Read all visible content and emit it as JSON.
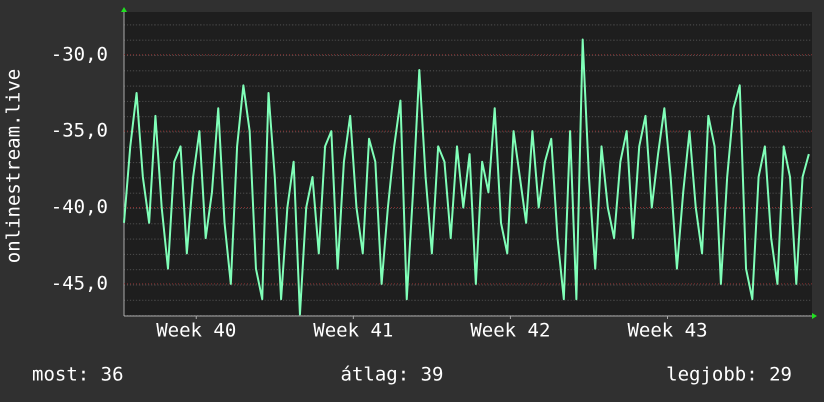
{
  "chart_data": {
    "type": "line",
    "y_label": "onlinestream.live",
    "color": "#80ffb8",
    "grid": true,
    "xlim": [
      39.54,
      43.92
    ],
    "xticks": [
      {
        "value": 40,
        "label": "Week 40"
      },
      {
        "value": 41,
        "label": "Week 41"
      },
      {
        "value": 42,
        "label": "Week 42"
      },
      {
        "value": 43,
        "label": "Week 43"
      }
    ],
    "ylim": [
      -47.1,
      -27.2
    ],
    "yticks": [
      {
        "value": -30,
        "label": "-30,0"
      },
      {
        "value": -35,
        "label": "-35,0"
      },
      {
        "value": -40,
        "label": "-40,0"
      },
      {
        "value": -45,
        "label": "-45,0"
      }
    ],
    "x": [
      39.54,
      39.58,
      39.62,
      39.66,
      39.7,
      39.74,
      39.78,
      39.82,
      39.86,
      39.9,
      39.94,
      39.98,
      40.02,
      40.06,
      40.1,
      40.14,
      40.18,
      40.22,
      40.26,
      40.3,
      40.34,
      40.38,
      40.42,
      40.46,
      40.5,
      40.54,
      40.58,
      40.62,
      40.66,
      40.7,
      40.74,
      40.78,
      40.82,
      40.86,
      40.9,
      40.94,
      40.98,
      41.02,
      41.06,
      41.1,
      41.14,
      41.18,
      41.22,
      41.26,
      41.3,
      41.34,
      41.38,
      41.42,
      41.46,
      41.5,
      41.54,
      41.58,
      41.62,
      41.66,
      41.7,
      41.74,
      41.78,
      41.82,
      41.86,
      41.9,
      41.94,
      41.98,
      42.02,
      42.06,
      42.1,
      42.14,
      42.18,
      42.22,
      42.26,
      42.3,
      42.34,
      42.38,
      42.42,
      42.46,
      42.5,
      42.54,
      42.58,
      42.62,
      42.66,
      42.7,
      42.74,
      42.78,
      42.82,
      42.86,
      42.9,
      42.94,
      42.98,
      43.02,
      43.06,
      43.1,
      43.14,
      43.18,
      43.22,
      43.26,
      43.3,
      43.34,
      43.38,
      43.42,
      43.46,
      43.5,
      43.54,
      43.58,
      43.62,
      43.66,
      43.7,
      43.74,
      43.78,
      43.82,
      43.86,
      43.9
    ],
    "values": [
      -41,
      -36,
      -32.5,
      -38,
      -41,
      -34,
      -40,
      -44,
      -37,
      -36,
      -43,
      -38,
      -35,
      -42,
      -39,
      -33.5,
      -41,
      -45,
      -36,
      -32,
      -35,
      -44,
      -46,
      -32.5,
      -38,
      -46,
      -40,
      -37,
      -47,
      -40,
      -38,
      -43,
      -36,
      -35,
      -44,
      -37,
      -34,
      -40,
      -43,
      -35.5,
      -37,
      -45,
      -40,
      -36,
      -33,
      -46,
      -39,
      -31,
      -38,
      -43,
      -36,
      -37,
      -42,
      -36,
      -40,
      -36.5,
      -45,
      -37,
      -39,
      -33.5,
      -41,
      -43,
      -35,
      -38,
      -41,
      -35,
      -40,
      -37,
      -35.5,
      -42,
      -46,
      -35,
      -46,
      -29,
      -38,
      -44,
      -36,
      -40,
      -42,
      -37,
      -35,
      -42,
      -36,
      -34,
      -40,
      -36.5,
      -33.5,
      -38,
      -44,
      -39,
      -35,
      -40,
      -43,
      -34,
      -36,
      -45,
      -38,
      -33.5,
      -32,
      -44,
      -46,
      -38,
      -36,
      -42,
      -45,
      -36,
      -38,
      -45,
      -38,
      -36.5
    ]
  },
  "footer": {
    "current": "most: 36",
    "average": "átlag: 39",
    "best": "legjobb: 29"
  }
}
